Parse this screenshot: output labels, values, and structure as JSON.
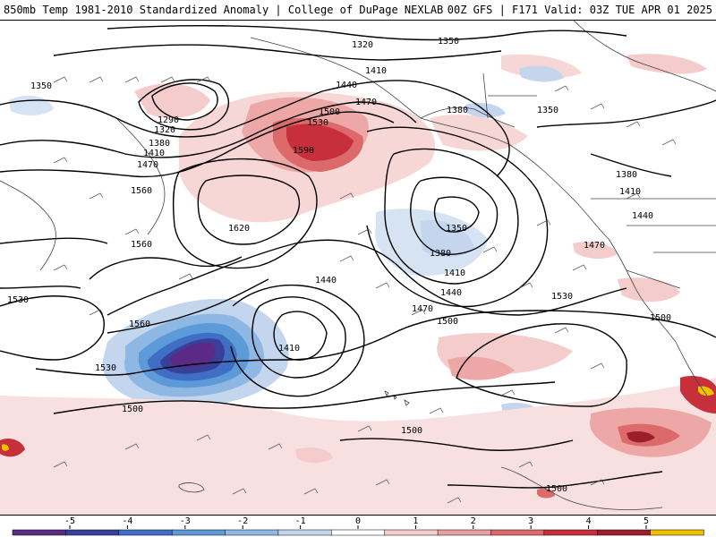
{
  "header": {
    "title": "850mb Temp 1981-2010 Standardized Anomaly | College of DuPage NEXLAB",
    "run_info": "00Z GFS | F171 Valid: 03Z TUE APR 01 2025"
  },
  "contour_labels": [
    "1320",
    "1350",
    "1410",
    "1440",
    "1470",
    "1500",
    "1530",
    "1590",
    "1380",
    "1350",
    "1350",
    "1290",
    "1320",
    "1380",
    "1410",
    "1470",
    "1560",
    "1620",
    "1350",
    "1380",
    "1410",
    "1440",
    "1380",
    "1410",
    "1440",
    "1470",
    "1560",
    "1530",
    "1530",
    "1440",
    "1470",
    "1500",
    "1560",
    "1410",
    "1530",
    "1500",
    "1500",
    "1500",
    "1500"
  ],
  "colorbar": {
    "ticks": [
      "-5",
      "-4",
      "-3",
      "-2",
      "-1",
      "0",
      "1",
      "2",
      "3",
      "4",
      "5"
    ],
    "colors": [
      "#5b2a86",
      "#3a3f9a",
      "#3f6fc4",
      "#5c9ad8",
      "#8fb7e3",
      "#c3d6ee",
      "#ffffff",
      "#f5cccc",
      "#ec9f9f",
      "#dc6a6a",
      "#c7303a",
      "#9c1e2a",
      "#f0c000"
    ]
  }
}
